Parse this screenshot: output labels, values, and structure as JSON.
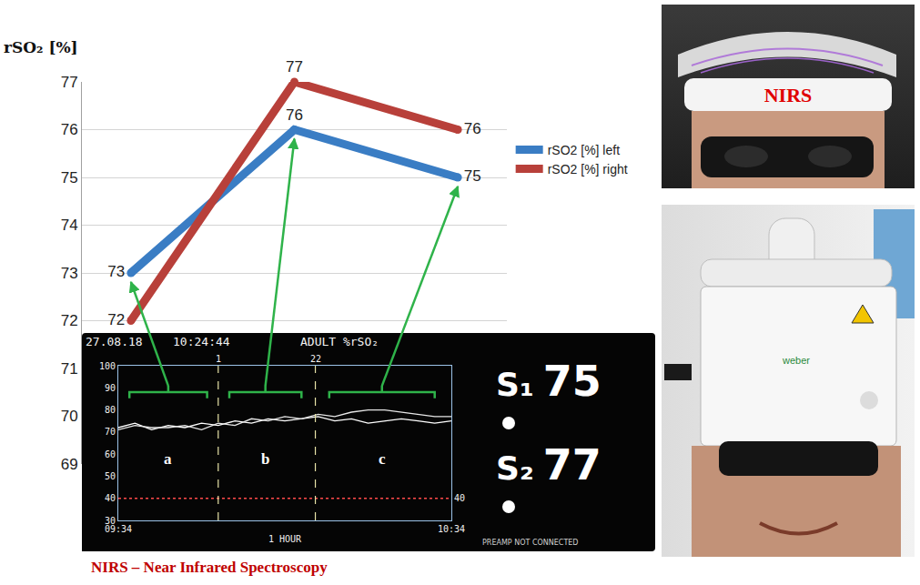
{
  "chart_data": [
    {
      "type": "line",
      "y_label": "rSO₂ [%]",
      "categories": [
        null,
        null,
        null
      ],
      "series": [
        {
          "name": "rSO2 [%] left",
          "color": "#3a7dc4",
          "values": [
            73,
            76,
            75
          ]
        },
        {
          "name": "rSO2 [%] right",
          "color": "#b8403a",
          "values": [
            72,
            77,
            76
          ]
        }
      ],
      "ylim": [
        69,
        77
      ],
      "yticks": [
        69,
        70,
        71,
        72,
        73,
        74,
        75,
        76,
        77
      ],
      "grid": true,
      "data_labels": true,
      "legend": "upper right",
      "tick_labels": "y"
    },
    {
      "type": "line",
      "title": "27.08.18  10:24:44  ADULT %rSO₂",
      "x_label": "1 HOUR",
      "x": [
        0,
        3,
        6,
        9,
        12,
        15,
        18,
        21,
        24,
        27,
        30,
        33,
        36,
        39,
        42,
        45,
        48,
        51,
        54,
        57,
        60
      ],
      "xlim": [
        0,
        60
      ],
      "xticks": [
        {
          "value": 0,
          "label": "09:34"
        },
        {
          "value": 60,
          "label": "10:34"
        }
      ],
      "ylim": [
        30,
        100
      ],
      "yticks": [
        30,
        40,
        50,
        60,
        70,
        80,
        90,
        100
      ],
      "y2lim": [
        30,
        100
      ],
      "y2ticks": [
        40
      ],
      "threshold": 40,
      "series": [
        {
          "name": "S₁",
          "color": "#ffffff",
          "reading": 75,
          "values": [
            72,
            74,
            71,
            73,
            72,
            74,
            73,
            75,
            74,
            76,
            75,
            76,
            77,
            75,
            76,
            74,
            75,
            76,
            75,
            74,
            75
          ]
        },
        {
          "name": "S₂",
          "color": "#e6e6e6",
          "reading": 77,
          "values": [
            71,
            73,
            72,
            72,
            73,
            71,
            74,
            73,
            76,
            75,
            77,
            76,
            78,
            77,
            79,
            80,
            80,
            79,
            78,
            77,
            77
          ]
        }
      ],
      "markers": [
        {
          "x": 18,
          "label": "1"
        },
        {
          "x": 35.5,
          "label": "22"
        }
      ],
      "segments": [
        {
          "label": "a",
          "from": 2,
          "to": 16
        },
        {
          "label": "b",
          "from": 20,
          "to": 33
        },
        {
          "label": "c",
          "from": 38,
          "to": 57
        }
      ],
      "footer": "PREAMP NOT CONNECTED"
    }
  ],
  "caption": "NIRS – Near Infrared Spectroscopy",
  "photos": {
    "top_label": "NIRS",
    "device_brand": "weber"
  }
}
